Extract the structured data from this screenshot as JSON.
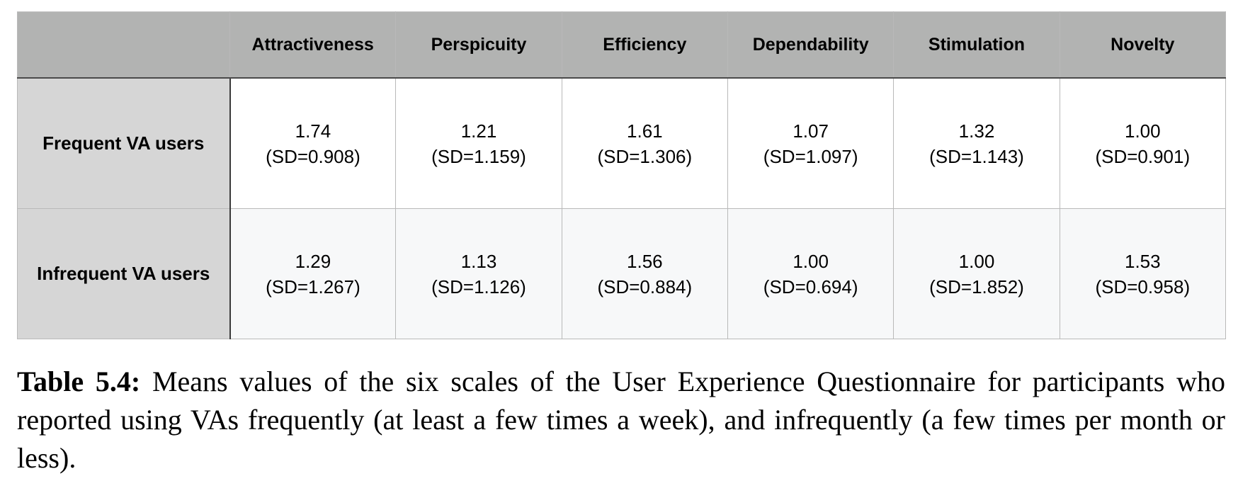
{
  "table": {
    "columns": [
      "Attractiveness",
      "Perspicuity",
      "Efficiency",
      "Dependability",
      "Stimulation",
      "Novelty"
    ],
    "rows": [
      {
        "label": "Frequent VA users",
        "cells": [
          {
            "mean": "1.74",
            "sd": "(SD=0.908)"
          },
          {
            "mean": "1.21",
            "sd": "(SD=1.159)"
          },
          {
            "mean": "1.61",
            "sd": "(SD=1.306)"
          },
          {
            "mean": "1.07",
            "sd": "(SD=1.097)"
          },
          {
            "mean": "1.32",
            "sd": "(SD=1.143)"
          },
          {
            "mean": "1.00",
            "sd": "(SD=0.901)"
          }
        ]
      },
      {
        "label": "Infrequent VA users",
        "cells": [
          {
            "mean": "1.29",
            "sd": "(SD=1.267)"
          },
          {
            "mean": "1.13",
            "sd": "(SD=1.126)"
          },
          {
            "mean": "1.56",
            "sd": "(SD=0.884)"
          },
          {
            "mean": "1.00",
            "sd": "(SD=0.694)"
          },
          {
            "mean": "1.00",
            "sd": "(SD=1.852)"
          },
          {
            "mean": "1.53",
            "sd": "(SD=0.958)"
          }
        ]
      }
    ]
  },
  "caption": {
    "label": "Table 5.4:",
    "text": "Means values of the six scales of the User Experience Questionnaire for participants who reported using VAs frequently (at least a few times a week), and infrequently (a few times per month or less)."
  },
  "colors": {
    "header_bg": "#b2b3b2",
    "row_header_bg": "#d6d6d6",
    "row1_bg": "#ffffff",
    "row2_bg": "#f7f8f9"
  }
}
